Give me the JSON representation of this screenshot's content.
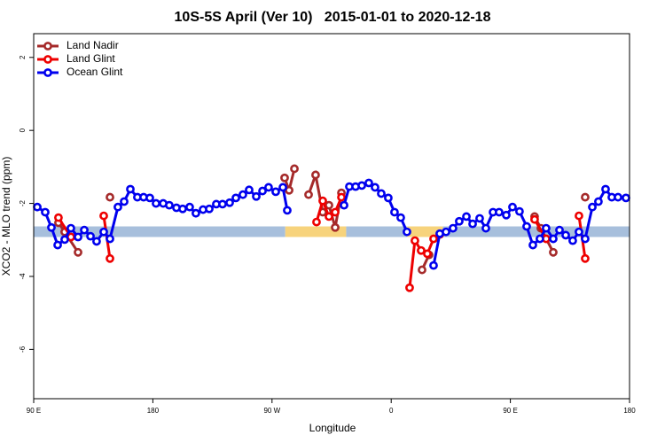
{
  "chart_data": {
    "type": "line",
    "title": "10S-5S April (Ver 10)   2015-01-01 to 2020-12-18",
    "x_label": "Longitude",
    "y_label": "XCO2 - MLO trend (ppm)",
    "xlim": [
      90,
      540
    ],
    "xticks": [
      {
        "value": 90,
        "label": "90 E"
      },
      {
        "value": 180,
        "label": "180"
      },
      {
        "value": 270,
        "label": "90 W"
      },
      {
        "value": 360,
        "label": "0"
      },
      {
        "value": 450,
        "label": "90 E"
      },
      {
        "value": 540,
        "label": "180"
      }
    ],
    "ylim": [
      -7.35,
      2.65
    ],
    "yticks": [
      -6,
      -4,
      -2,
      0,
      2
    ],
    "legend": "top-left",
    "band": {
      "ylim": [
        -2.92,
        -2.63
      ],
      "spans": [
        {
          "x": [
            90,
            280
          ],
          "color": "#a7bfdc"
        },
        {
          "x": [
            280,
            326
          ],
          "color": "#f7d37c"
        },
        {
          "x": [
            326,
            372
          ],
          "color": "#a7bfdc"
        },
        {
          "x": [
            372,
            399
          ],
          "color": "#f7d37c"
        },
        {
          "x": [
            399,
            540
          ],
          "color": "#a7bfdc"
        }
      ]
    },
    "series": [
      {
        "name": "Land Nadir",
        "color": "#a52a2a",
        "x": [
          108.7,
          113.4,
          123.5,
          null,
          147.6,
          null,
          279.5,
          282.9,
          286.9,
          null,
          297.6,
          302.9,
          308.3,
          313.0,
          317.7,
          322.4,
          null,
          383.3,
          388.6,
          null,
          468.3,
          473.0,
          482.4,
          null,
          506.5
        ],
        "values": [
          -2.53,
          -2.78,
          -3.34,
          null,
          -1.83,
          null,
          -1.3,
          -1.64,
          -1.05,
          null,
          -1.76,
          -1.22,
          -2.24,
          -2.05,
          -2.66,
          -1.71,
          null,
          -3.82,
          -3.41,
          null,
          -2.36,
          -2.68,
          -3.34,
          null,
          -1.83
        ]
      },
      {
        "name": "Land Glint",
        "color": "#ee0000",
        "x": [
          108.7,
          118.1,
          null,
          142.9,
          147.6,
          null,
          303.6,
          308.3,
          313.0,
          317.7,
          322.4,
          null,
          373.9,
          377.9,
          382.6,
          387.3,
          392.0,
          396.7,
          null,
          468.3,
          477.0,
          null,
          501.8,
          506.5
        ],
        "values": [
          -2.39,
          -2.92,
          null,
          -2.34,
          -3.51,
          null,
          -2.51,
          -1.93,
          -2.36,
          -2.24,
          -1.83,
          null,
          -4.31,
          -3.02,
          -3.29,
          -3.38,
          -2.97,
          -2.85,
          null,
          -2.44,
          -2.97,
          null,
          -2.34,
          -3.51
        ]
      },
      {
        "name": "Ocean Glint",
        "color": "#0000ee",
        "x": [
          92.7,
          98.7,
          103.4,
          108.1,
          113.4,
          118.1,
          123.5,
          128.2,
          132.9,
          137.5,
          142.9,
          147.6,
          153.6,
          158.3,
          163.0,
          168.3,
          173.0,
          177.7,
          182.4,
          187.8,
          192.4,
          197.8,
          202.5,
          207.8,
          212.5,
          217.9,
          222.6,
          227.9,
          232.6,
          238.0,
          242.7,
          248.0,
          252.7,
          258.1,
          262.8,
          267.4,
          272.8,
          278.2,
          281.5,
          null,
          324.4,
          328.4,
          333.1,
          337.8,
          343.1,
          347.8,
          352.5,
          357.8,
          362.5,
          367.2,
          371.9,
          null,
          392.0,
          396.7,
          401.4,
          406.7,
          411.4,
          416.8,
          421.5,
          426.8,
          431.5,
          436.9,
          441.5,
          446.9,
          451.6,
          456.9,
          462.3,
          467.0,
          472.3,
          477.0,
          482.4,
          487.1,
          491.8,
          497.1,
          501.8,
          506.5,
          511.9,
          516.5,
          521.9,
          526.6,
          531.3,
          537.3
        ],
        "values": [
          -2.1,
          -2.24,
          -2.66,
          -3.14,
          -2.99,
          -2.68,
          -2.92,
          -2.73,
          -2.9,
          -3.04,
          -2.78,
          -2.97,
          -2.1,
          -1.95,
          -1.61,
          -1.83,
          -1.83,
          -1.85,
          -2.0,
          -2.0,
          -2.05,
          -2.12,
          -2.15,
          -2.1,
          -2.27,
          -2.17,
          -2.15,
          -2.02,
          -2.02,
          -1.98,
          -1.85,
          -1.76,
          -1.63,
          -1.81,
          -1.66,
          -1.56,
          -1.68,
          -1.56,
          -2.19,
          null,
          -2.05,
          -1.54,
          -1.54,
          -1.51,
          -1.44,
          -1.56,
          -1.73,
          -1.85,
          -2.24,
          -2.39,
          -2.78,
          null,
          -3.7,
          -2.83,
          -2.78,
          -2.68,
          -2.49,
          -2.36,
          -2.56,
          -2.41,
          -2.68,
          -2.24,
          -2.24,
          -2.32,
          -2.1,
          -2.22,
          -2.63,
          -3.14,
          -2.97,
          -2.68,
          -2.97,
          -2.73,
          -2.87,
          -3.02,
          -2.78,
          -2.97,
          -2.1,
          -1.95,
          -1.61,
          -1.83,
          -1.83,
          -1.85
        ]
      }
    ]
  }
}
